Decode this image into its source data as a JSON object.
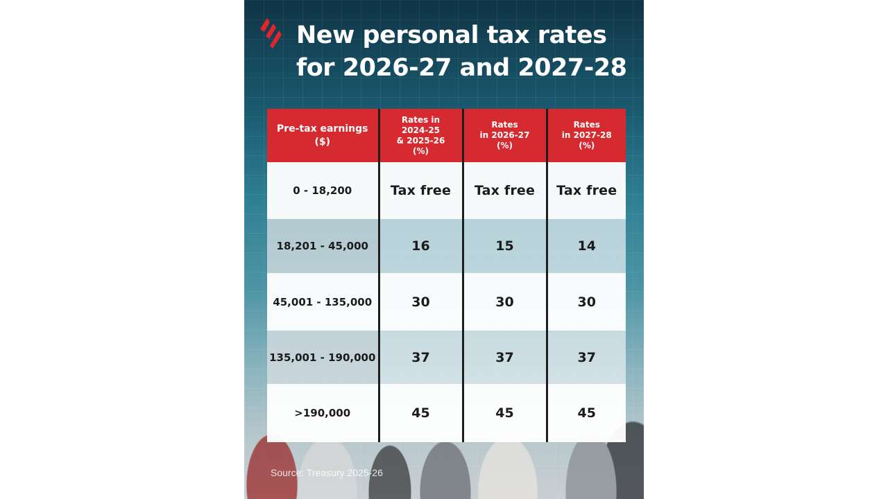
{
  "title": {
    "line1": "New personal tax rates",
    "line2": "for 2026-27 and 2027-28"
  },
  "brand": {
    "logo_icon": "sbs-logo-icon",
    "accent": "#d42a30"
  },
  "table": {
    "headers": {
      "col1": [
        "Pre-tax earnings",
        "($)"
      ],
      "col2": [
        "Rates in",
        "2024-25",
        "& 2025-26",
        "(%)"
      ],
      "col3": [
        "Rates",
        "in 2026-27",
        "(%)"
      ],
      "col4": [
        "Rates",
        "in 2027-28",
        "(%)"
      ]
    },
    "rows": [
      {
        "earnings": "0 - 18,200",
        "rate_2025": "Tax free",
        "rate_2026": "Tax free",
        "rate_2027": "Tax free"
      },
      {
        "earnings": "18,201 - 45,000",
        "rate_2025": "16",
        "rate_2026": "15",
        "rate_2027": "14"
      },
      {
        "earnings": "45,001 - 135,000",
        "rate_2025": "30",
        "rate_2026": "30",
        "rate_2027": "30"
      },
      {
        "earnings": "135,001 - 190,000",
        "rate_2025": "37",
        "rate_2026": "37",
        "rate_2027": "37"
      },
      {
        "earnings": ">190,000",
        "rate_2025": "45",
        "rate_2026": "45",
        "rate_2027": "45"
      }
    ]
  },
  "source": "Source: Treasury 2025-26"
}
